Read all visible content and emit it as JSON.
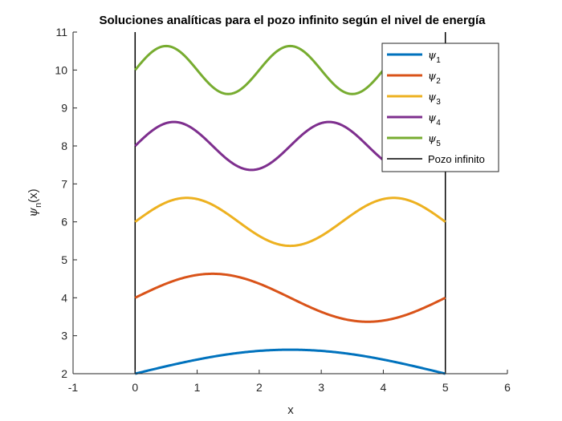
{
  "chart_data": {
    "type": "line",
    "title": "Soluciones analíticas para el pozo infinito según el nivel de energía",
    "xlabel": "x",
    "ylabel_symbol": "ψ",
    "ylabel_sub": "n",
    "ylabel_suffix": "(x)",
    "xlim": [
      -1,
      6
    ],
    "ylim": [
      2,
      11
    ],
    "xticks": [
      "-1",
      "0",
      "1",
      "2",
      "3",
      "4",
      "5",
      "6"
    ],
    "yticks": [
      "2",
      "3",
      "4",
      "5",
      "6",
      "7",
      "8",
      "9",
      "10",
      "11"
    ],
    "well": {
      "name": "Pozo infinito",
      "x_left": 0,
      "x_right": 5,
      "color": "#000000"
    },
    "L": 5,
    "amplitude": 0.632,
    "series": [
      {
        "name": "ψ",
        "sub": "1",
        "n": 1,
        "offset": 2,
        "color": "#0072BD"
      },
      {
        "name": "ψ",
        "sub": "2",
        "n": 2,
        "offset": 4,
        "color": "#D95319"
      },
      {
        "name": "ψ",
        "sub": "3",
        "n": 3,
        "offset": 6,
        "color": "#EDB120"
      },
      {
        "name": "ψ",
        "sub": "4",
        "n": 4,
        "offset": 8,
        "color": "#7E2F8E"
      },
      {
        "name": "ψ",
        "sub": "5",
        "n": 5,
        "offset": 10,
        "color": "#77AC30"
      }
    ],
    "legend": {
      "position": "top-right"
    },
    "grid": false
  }
}
